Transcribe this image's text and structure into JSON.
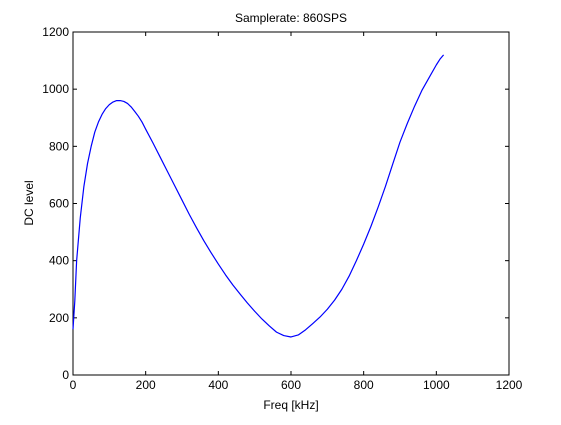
{
  "chart_data": {
    "type": "line",
    "title": "Samplerate: 860SPS",
    "xlabel": "Freq [kHz]",
    "ylabel": "DC level",
    "xlim": [
      0,
      1200
    ],
    "ylim": [
      0,
      1200
    ],
    "xticks": [
      0,
      200,
      400,
      600,
      800,
      1000,
      1200
    ],
    "yticks": [
      0,
      200,
      400,
      600,
      800,
      1000,
      1200
    ],
    "grid": false,
    "series": [
      {
        "color": "#0000ff",
        "x": [
          0,
          5,
          10,
          20,
          30,
          40,
          50,
          60,
          70,
          80,
          90,
          100,
          110,
          120,
          130,
          140,
          150,
          160,
          170,
          180,
          190,
          200,
          220,
          240,
          260,
          280,
          300,
          320,
          340,
          360,
          380,
          400,
          420,
          440,
          460,
          480,
          500,
          520,
          540,
          560,
          580,
          600,
          620,
          640,
          660,
          680,
          700,
          720,
          740,
          760,
          780,
          800,
          820,
          840,
          860,
          880,
          900,
          920,
          940,
          960,
          980,
          1000,
          1010,
          1020
        ],
        "y": [
          160,
          260,
          400,
          550,
          660,
          740,
          800,
          850,
          885,
          912,
          932,
          946,
          955,
          960,
          960,
          957,
          950,
          938,
          922,
          905,
          885,
          860,
          812,
          762,
          712,
          662,
          612,
          562,
          515,
          470,
          428,
          388,
          350,
          315,
          283,
          252,
          223,
          196,
          172,
          150,
          138,
          133,
          140,
          158,
          180,
          203,
          230,
          262,
          300,
          346,
          400,
          458,
          520,
          588,
          660,
          738,
          815,
          880,
          940,
          995,
          1040,
          1085,
          1105,
          1120
        ]
      }
    ]
  }
}
